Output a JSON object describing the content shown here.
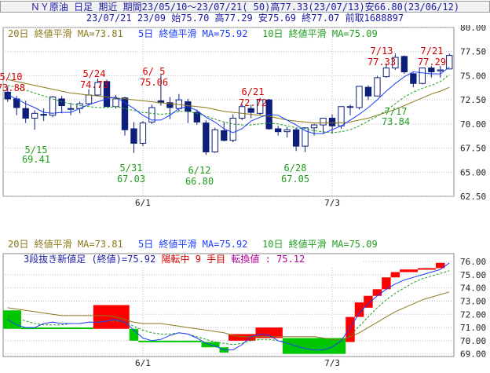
{
  "header": {
    "line1": "ＮＹ原油 日足 期近 期間23/05/10～23/07/21( 50)高77.33(23/07/13)安66.80(23/06/12)",
    "line2": "23/07/21 23/09 始75.70 高77.29 安75.69 終77.07 前取1688897"
  },
  "colors": {
    "up_candle": "#ffffff",
    "down_candle": "#0d1f7a",
    "ma20": "#8a7a1a",
    "ma5": "#1a3cff",
    "ma10": "#1f9e1f",
    "red_label": "#d40000",
    "green_label": "#1f9e1f",
    "break_up": "#ff0000",
    "break_down": "#00c800",
    "grid": "#bdbdbd"
  },
  "chart_data": [
    {
      "type": "candlestick",
      "legend": [
        "20日 終値平滑 MA=73.81",
        "5日 終値平滑 MA=75.92",
        "10日 終値平滑 MA=75.09"
      ],
      "y_ticks": [
        "80.00",
        "77.50",
        "75.00",
        "72.50",
        "70.00",
        "67.50",
        "65.00",
        "62.50"
      ],
      "ylim": [
        62.5,
        80.0
      ],
      "x_ticks": [
        {
          "label": "6/1",
          "index": 15
        },
        {
          "label": "7/3",
          "index": 36
        }
      ],
      "grid": true,
      "candles": [
        {
          "date": "5/10",
          "open": 73.3,
          "high": 73.9,
          "low": 72.3,
          "close": 72.6
        },
        {
          "date": "5/11",
          "open": 72.6,
          "high": 72.9,
          "low": 70.9,
          "close": 71.7
        },
        {
          "date": "5/12",
          "open": 71.6,
          "high": 72.4,
          "low": 70.1,
          "close": 70.6
        },
        {
          "date": "5/15",
          "open": 70.6,
          "high": 71.4,
          "low": 69.4,
          "close": 71.1
        },
        {
          "date": "5/16",
          "open": 71.0,
          "high": 71.6,
          "low": 70.3,
          "close": 70.9
        },
        {
          "date": "5/17",
          "open": 70.9,
          "high": 72.9,
          "low": 70.7,
          "close": 72.8
        },
        {
          "date": "5/18",
          "open": 72.6,
          "high": 72.9,
          "low": 71.1,
          "close": 71.9
        },
        {
          "date": "5/19",
          "open": 71.6,
          "high": 72.2,
          "low": 70.9,
          "close": 71.6
        },
        {
          "date": "5/22",
          "open": 71.6,
          "high": 72.3,
          "low": 71.1,
          "close": 72.1
        },
        {
          "date": "5/23",
          "open": 72.1,
          "high": 73.6,
          "low": 71.9,
          "close": 73.0
        },
        {
          "date": "5/24",
          "open": 73.0,
          "high": 74.7,
          "low": 72.9,
          "close": 74.3
        },
        {
          "date": "5/25",
          "open": 74.4,
          "high": 74.6,
          "low": 71.9,
          "close": 71.8
        },
        {
          "date": "5/26",
          "open": 71.8,
          "high": 73.0,
          "low": 71.6,
          "close": 72.6
        },
        {
          "date": "5/30",
          "open": 72.7,
          "high": 72.8,
          "low": 68.8,
          "close": 69.4
        },
        {
          "date": "5/31",
          "open": 69.5,
          "high": 70.2,
          "low": 67.0,
          "close": 68.0
        },
        {
          "date": "6/1",
          "open": 68.0,
          "high": 70.3,
          "low": 67.7,
          "close": 70.1
        },
        {
          "date": "6/2",
          "open": 70.2,
          "high": 72.0,
          "low": 70.0,
          "close": 71.7
        },
        {
          "date": "6/5",
          "open": 72.4,
          "high": 75.1,
          "low": 71.9,
          "close": 72.2
        },
        {
          "date": "6/6",
          "open": 72.2,
          "high": 72.8,
          "low": 70.5,
          "close": 71.7
        },
        {
          "date": "6/7",
          "open": 71.6,
          "high": 73.1,
          "low": 71.3,
          "close": 72.5
        },
        {
          "date": "6/8",
          "open": 72.3,
          "high": 72.6,
          "low": 70.1,
          "close": 71.3
        },
        {
          "date": "6/9",
          "open": 71.2,
          "high": 71.5,
          "low": 69.9,
          "close": 70.2
        },
        {
          "date": "6/12",
          "open": 70.1,
          "high": 70.4,
          "low": 66.8,
          "close": 67.1
        },
        {
          "date": "6/13",
          "open": 67.1,
          "high": 69.6,
          "low": 67.0,
          "close": 69.4
        },
        {
          "date": "6/14",
          "open": 69.3,
          "high": 70.2,
          "low": 68.2,
          "close": 68.3
        },
        {
          "date": "6/15",
          "open": 68.3,
          "high": 71.0,
          "low": 68.1,
          "close": 70.6
        },
        {
          "date": "6/16",
          "open": 70.6,
          "high": 72.0,
          "low": 70.4,
          "close": 71.8
        },
        {
          "date": "6/20",
          "open": 71.6,
          "high": 72.0,
          "low": 70.6,
          "close": 71.2
        },
        {
          "date": "6/21",
          "open": 71.1,
          "high": 72.7,
          "low": 70.9,
          "close": 72.5
        },
        {
          "date": "6/22",
          "open": 72.5,
          "high": 72.6,
          "low": 69.4,
          "close": 69.5
        },
        {
          "date": "6/23",
          "open": 69.5,
          "high": 69.8,
          "low": 68.8,
          "close": 69.2
        },
        {
          "date": "6/26",
          "open": 69.2,
          "high": 69.7,
          "low": 68.6,
          "close": 69.4
        },
        {
          "date": "6/27",
          "open": 69.4,
          "high": 69.6,
          "low": 67.2,
          "close": 67.7
        },
        {
          "date": "6/28",
          "open": 67.7,
          "high": 69.6,
          "low": 67.1,
          "close": 69.6
        },
        {
          "date": "6/29",
          "open": 69.6,
          "high": 70.0,
          "low": 68.8,
          "close": 69.9
        },
        {
          "date": "6/30",
          "open": 69.9,
          "high": 70.6,
          "low": 69.0,
          "close": 70.6
        },
        {
          "date": "7/3",
          "open": 70.6,
          "high": 71.0,
          "low": 69.0,
          "close": 69.8
        },
        {
          "date": "7/5",
          "open": 69.8,
          "high": 71.7,
          "low": 69.5,
          "close": 71.8
        },
        {
          "date": "7/6",
          "open": 71.8,
          "high": 72.0,
          "low": 70.9,
          "close": 71.8
        },
        {
          "date": "7/7",
          "open": 71.7,
          "high": 73.8,
          "low": 71.5,
          "close": 73.9
        },
        {
          "date": "7/10",
          "open": 73.8,
          "high": 74.0,
          "low": 72.5,
          "close": 72.9
        },
        {
          "date": "7/11",
          "open": 72.9,
          "high": 75.0,
          "low": 72.9,
          "close": 74.8
        },
        {
          "date": "7/12",
          "open": 74.9,
          "high": 76.3,
          "low": 74.8,
          "close": 75.8
        },
        {
          "date": "7/13",
          "open": 75.8,
          "high": 77.3,
          "low": 75.6,
          "close": 76.9
        },
        {
          "date": "7/14",
          "open": 77.0,
          "high": 77.1,
          "low": 75.2,
          "close": 75.4
        },
        {
          "date": "7/17",
          "open": 75.2,
          "high": 75.3,
          "low": 73.8,
          "close": 74.2
        },
        {
          "date": "7/18",
          "open": 74.2,
          "high": 75.8,
          "low": 74.1,
          "close": 75.8
        },
        {
          "date": "7/19",
          "open": 75.8,
          "high": 76.0,
          "low": 74.8,
          "close": 75.4
        },
        {
          "date": "7/20",
          "open": 75.5,
          "high": 76.0,
          "low": 74.8,
          "close": 75.6
        },
        {
          "date": "7/21",
          "open": 75.7,
          "high": 77.3,
          "low": 75.7,
          "close": 77.1
        }
      ],
      "ma20": [
        74.6,
        74.4,
        74.2,
        74.0,
        73.8,
        73.6,
        73.4,
        73.2,
        73.1,
        73.0,
        72.9,
        72.8,
        72.7,
        72.6,
        72.5,
        72.4,
        72.3,
        72.2,
        72.1,
        72.0,
        71.9,
        71.8,
        71.7,
        71.5,
        71.3,
        71.2,
        71.1,
        71.0,
        70.9,
        70.8,
        70.6,
        70.4,
        70.3,
        70.2,
        70.1,
        70.1,
        70.1,
        70.1,
        70.2,
        70.4,
        70.6,
        70.9,
        71.2,
        71.5,
        71.9,
        72.3,
        72.7,
        73.1,
        73.4,
        73.8
      ],
      "ma5": [
        73.0,
        72.6,
        72.1,
        71.7,
        71.2,
        71.1,
        71.2,
        71.2,
        71.6,
        72.0,
        72.3,
        72.6,
        72.8,
        72.2,
        71.6,
        70.9,
        70.4,
        70.4,
        70.9,
        71.6,
        71.8,
        71.4,
        70.7,
        70.2,
        69.5,
        69.1,
        69.5,
        70.3,
        70.7,
        71.0,
        70.9,
        70.4,
        69.9,
        69.3,
        69.0,
        69.0,
        69.4,
        69.8,
        70.4,
        71.0,
        71.7,
        72.5,
        73.4,
        74.2,
        74.9,
        75.4,
        75.3,
        75.2,
        75.2,
        75.9
      ],
      "ma10": [
        74.0,
        73.8,
        73.5,
        73.2,
        72.9,
        72.6,
        72.3,
        72.1,
        71.9,
        71.8,
        71.7,
        71.7,
        71.8,
        71.6,
        71.4,
        71.2,
        71.1,
        71.0,
        71.1,
        71.3,
        71.3,
        71.1,
        70.8,
        70.5,
        70.2,
        70.0,
        69.9,
        69.9,
        70.0,
        70.1,
        70.0,
        69.8,
        69.6,
        69.5,
        69.3,
        69.2,
        69.1,
        69.2,
        69.4,
        69.8,
        70.3,
        70.8,
        71.4,
        72.1,
        72.8,
        73.3,
        73.7,
        74.0,
        74.4,
        75.1
      ],
      "annotations": [
        {
          "date": "5/10",
          "value": "73.88",
          "pos": "above",
          "color": "red"
        },
        {
          "date": "5/24",
          "value": "74.73",
          "pos": "above",
          "color": "red"
        },
        {
          "date": "6/ 5",
          "value": "75.06",
          "pos": "above",
          "color": "red"
        },
        {
          "date": "6/21",
          "value": "72.72",
          "pos": "above",
          "color": "red"
        },
        {
          "date": "7/13",
          "value": "77.33",
          "pos": "above",
          "color": "red"
        },
        {
          "date": "7/21",
          "value": "77.29",
          "pos": "above",
          "color": "red"
        },
        {
          "date": "5/15",
          "value": "69.41",
          "pos": "below",
          "color": "green"
        },
        {
          "date": "5/31",
          "value": "67.03",
          "pos": "below",
          "color": "green"
        },
        {
          "date": "6/12",
          "value": "66.80",
          "pos": "below",
          "color": "green"
        },
        {
          "date": "6/28",
          "value": "67.05",
          "pos": "below",
          "color": "green"
        },
        {
          "date": "7/17",
          "value": "73.84",
          "pos": "below",
          "color": "green"
        }
      ]
    },
    {
      "type": "three-line-break",
      "legend": [
        "20日 終値平滑 MA=73.81",
        "5日 終値平滑 MA=75.92",
        "10日 終値平滑 MA=75.09"
      ],
      "info": {
        "prefix": "3段抜き新値足 (終値)=75.92 ",
        "status": "陽転中",
        "count": "  9 手目 ",
        "turn": "転換値 : 75.12"
      },
      "y_ticks": [
        "76.00",
        "75.00",
        "74.00",
        "73.00",
        "72.00",
        "71.00",
        "70.00",
        "69.00"
      ],
      "ylim": [
        68.8,
        76.6
      ],
      "x_ticks": [
        {
          "label": "6/1",
          "index": 15
        },
        {
          "label": "7/3",
          "index": 36
        }
      ],
      "grid": true,
      "bricks": [
        {
          "i0": 0,
          "i1": 2,
          "from": 72.3,
          "to": 70.9,
          "dir": "down"
        },
        {
          "i0": 2,
          "i1": 10,
          "from": 71.0,
          "to": 70.9,
          "dir": "down"
        },
        {
          "i0": 10,
          "i1": 14,
          "from": 70.9,
          "to": 72.7,
          "dir": "up"
        },
        {
          "i0": 14,
          "i1": 15,
          "from": 70.9,
          "to": 70.0,
          "dir": "down"
        },
        {
          "i0": 15,
          "i1": 22,
          "from": 70.0,
          "to": 69.9,
          "dir": "down"
        },
        {
          "i0": 22,
          "i1": 24,
          "from": 69.9,
          "to": 69.5,
          "dir": "down"
        },
        {
          "i0": 24,
          "i1": 25,
          "from": 69.5,
          "to": 69.1,
          "dir": "down"
        },
        {
          "i0": 25,
          "i1": 28,
          "from": 70.0,
          "to": 70.5,
          "dir": "up"
        },
        {
          "i0": 28,
          "i1": 31,
          "from": 70.2,
          "to": 71.0,
          "dir": "up"
        },
        {
          "i0": 31,
          "i1": 38,
          "from": 70.2,
          "to": 69.0,
          "dir": "down"
        },
        {
          "i0": 38,
          "i1": 39,
          "from": 69.9,
          "to": 71.8,
          "dir": "up"
        },
        {
          "i0": 39,
          "i1": 40,
          "from": 71.8,
          "to": 72.9,
          "dir": "up"
        },
        {
          "i0": 40,
          "i1": 41,
          "from": 72.5,
          "to": 73.4,
          "dir": "up"
        },
        {
          "i0": 41,
          "i1": 42,
          "from": 73.4,
          "to": 73.9,
          "dir": "up"
        },
        {
          "i0": 42,
          "i1": 43,
          "from": 73.9,
          "to": 74.8,
          "dir": "up"
        },
        {
          "i0": 43,
          "i1": 44,
          "from": 74.8,
          "to": 75.2,
          "dir": "up"
        },
        {
          "i0": 44,
          "i1": 46,
          "from": 75.2,
          "to": 75.4,
          "dir": "up"
        },
        {
          "i0": 46,
          "i1": 48,
          "from": 75.4,
          "to": 75.5,
          "dir": "up"
        },
        {
          "i0": 48,
          "i1": 49,
          "from": 75.5,
          "to": 75.9,
          "dir": "up"
        }
      ],
      "ma20": [
        72.5,
        72.4,
        72.3,
        72.2,
        72.1,
        72.0,
        71.9,
        71.9,
        71.9,
        71.9,
        71.9,
        71.9,
        71.8,
        71.6,
        71.4,
        71.3,
        71.3,
        71.3,
        71.2,
        71.1,
        71.0,
        70.9,
        70.8,
        70.7,
        70.6,
        70.4,
        70.3,
        70.3,
        70.3,
        70.3,
        70.3,
        70.3,
        70.3,
        70.3,
        70.3,
        70.2,
        70.1,
        70.1,
        70.3,
        70.6,
        71.0,
        71.4,
        71.8,
        72.2,
        72.5,
        72.8,
        73.1,
        73.3,
        73.5,
        73.7
      ],
      "ma5": [
        71.6,
        71.2,
        71.0,
        71.0,
        71.3,
        71.4,
        71.3,
        71.3,
        71.3,
        71.4,
        71.4,
        71.5,
        71.6,
        71.4,
        70.8,
        70.2,
        70.0,
        70.1,
        70.4,
        70.6,
        70.5,
        70.2,
        69.8,
        69.6,
        69.3,
        69.3,
        69.7,
        70.3,
        70.5,
        70.4,
        70.0,
        69.8,
        69.6,
        69.4,
        69.3,
        69.3,
        69.5,
        70.0,
        71.0,
        72.1,
        72.8,
        73.4,
        73.9,
        74.3,
        74.6,
        74.8,
        75.0,
        75.2,
        75.4,
        75.9
      ],
      "ma10": [
        71.9,
        71.7,
        71.5,
        71.3,
        71.2,
        71.2,
        71.2,
        71.3,
        71.3,
        71.4,
        71.4,
        71.5,
        71.5,
        71.4,
        71.1,
        70.8,
        70.6,
        70.5,
        70.5,
        70.6,
        70.5,
        70.3,
        70.1,
        69.9,
        69.8,
        69.7,
        69.8,
        70.0,
        70.1,
        70.1,
        70.0,
        69.9,
        69.8,
        69.7,
        69.6,
        69.5,
        69.6,
        69.9,
        70.4,
        71.1,
        71.8,
        72.5,
        73.1,
        73.6,
        74.0,
        74.4,
        74.7,
        74.9,
        75.1,
        75.3
      ]
    }
  ]
}
